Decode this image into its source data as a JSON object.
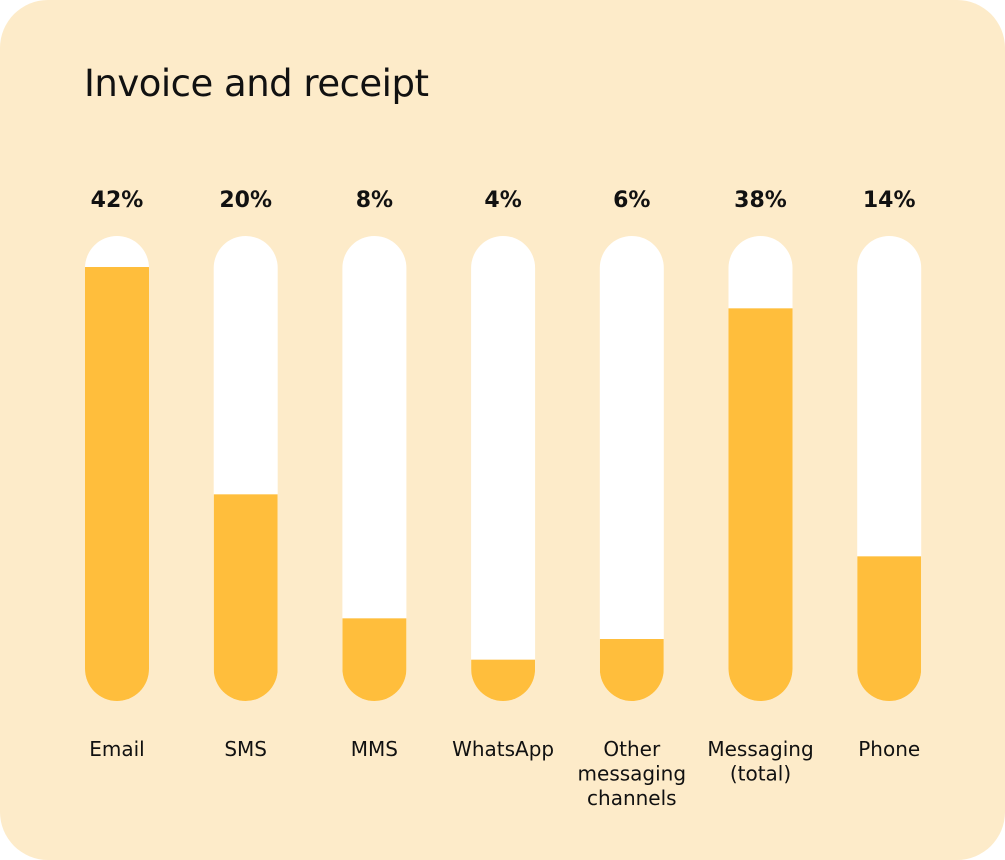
{
  "chart_data": {
    "type": "bar",
    "title": "Invoice and receipt",
    "categories": [
      "Email",
      "SMS",
      "MMS",
      "WhatsApp",
      "Other messaging channels",
      "Messaging (total)",
      "Phone"
    ],
    "category_lines": [
      [
        "Email"
      ],
      [
        "SMS"
      ],
      [
        "MMS"
      ],
      [
        "WhatsApp"
      ],
      [
        "Other",
        "messaging",
        "channels"
      ],
      [
        "Messaging",
        "(total)"
      ],
      [
        "Phone"
      ]
    ],
    "value_labels": [
      "42%",
      "20%",
      "8%",
      "4%",
      "6%",
      "38%",
      "14%"
    ],
    "values": [
      42,
      20,
      8,
      4,
      6,
      38,
      14
    ],
    "ylim": [
      0,
      45
    ],
    "grid": false,
    "legend": "none"
  },
  "colors": {
    "background": "#fdebc9",
    "track": "#ffffff",
    "fill": "#ffbe3c",
    "text": "#111111"
  }
}
